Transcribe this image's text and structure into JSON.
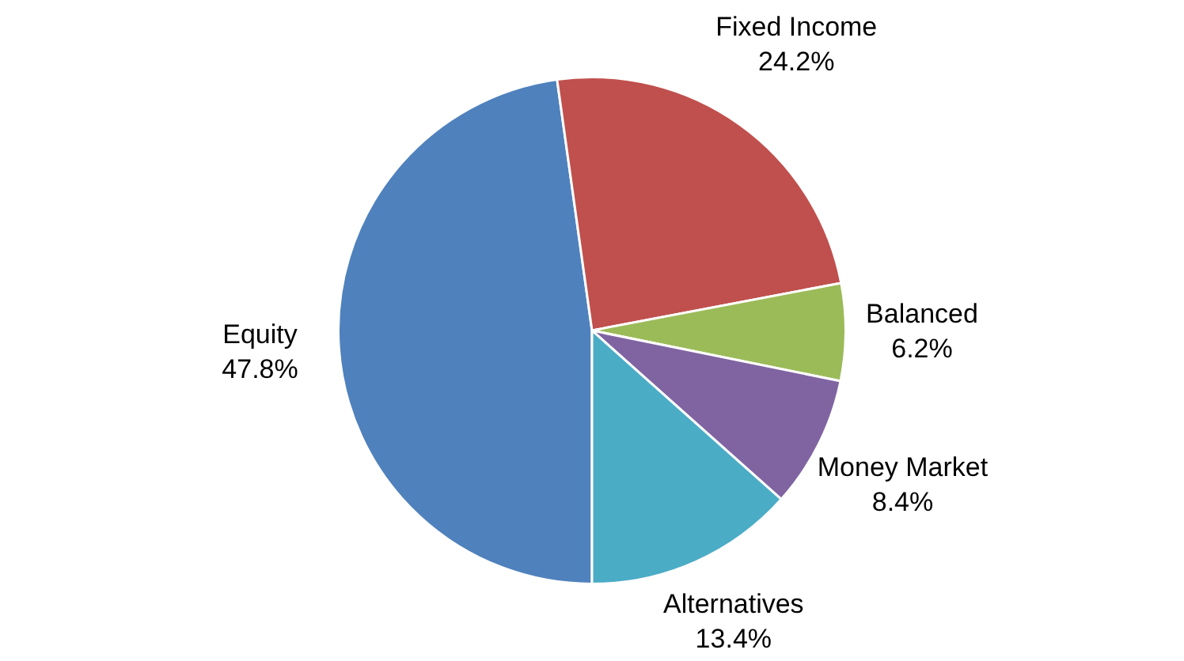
{
  "chart_data": {
    "type": "pie",
    "categories": [
      "Equity",
      "Fixed Income",
      "Balanced",
      "Money Market",
      "Alternatives"
    ],
    "values": [
      47.8,
      24.2,
      6.2,
      8.4,
      13.4
    ],
    "colors": [
      "#4f81bd",
      "#c0504d",
      "#9bbb59",
      "#8064a2",
      "#4bacc6"
    ],
    "value_labels": [
      "47.8%",
      "24.2%",
      "6.2%",
      "8.4%",
      "13.4%"
    ],
    "legend": false
  }
}
